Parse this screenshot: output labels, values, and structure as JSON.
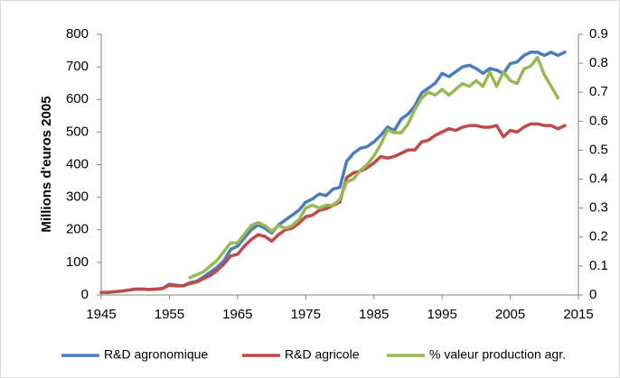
{
  "chart_data": {
    "type": "line",
    "y_label": "Millions d'euros 2005",
    "x": [
      1945,
      1946,
      1947,
      1948,
      1949,
      1950,
      1951,
      1952,
      1953,
      1954,
      1955,
      1956,
      1957,
      1958,
      1959,
      1960,
      1961,
      1962,
      1963,
      1964,
      1965,
      1966,
      1967,
      1968,
      1969,
      1970,
      1971,
      1972,
      1973,
      1974,
      1975,
      1976,
      1977,
      1978,
      1979,
      1980,
      1981,
      1982,
      1983,
      1984,
      1985,
      1986,
      1987,
      1988,
      1989,
      1990,
      1991,
      1992,
      1993,
      1994,
      1995,
      1996,
      1997,
      1998,
      1999,
      2000,
      2001,
      2002,
      2003,
      2004,
      2005,
      2006,
      2007,
      2008,
      2009,
      2010,
      2011,
      2012,
      2013
    ],
    "series": [
      {
        "name": "R&D agronomique",
        "color": "#4a7ebb",
        "values": [
          8,
          8,
          10,
          12,
          15,
          18,
          18,
          17,
          18,
          20,
          33,
          30,
          28,
          38,
          42,
          55,
          70,
          85,
          105,
          140,
          150,
          175,
          200,
          215,
          205,
          190,
          215,
          230,
          245,
          260,
          285,
          295,
          310,
          305,
          325,
          330,
          410,
          435,
          450,
          455,
          470,
          490,
          515,
          505,
          540,
          555,
          580,
          620,
          635,
          650,
          680,
          670,
          685,
          700,
          705,
          695,
          680,
          695,
          690,
          680,
          710,
          715,
          735,
          745,
          745,
          735,
          745,
          735,
          745
        ]
      },
      {
        "name": "R&D agricole",
        "color": "#be4b48",
        "values": [
          8,
          8,
          10,
          12,
          15,
          18,
          18,
          17,
          18,
          20,
          30,
          28,
          28,
          35,
          40,
          50,
          60,
          75,
          95,
          120,
          125,
          150,
          170,
          185,
          180,
          165,
          185,
          200,
          205,
          220,
          240,
          245,
          260,
          265,
          275,
          285,
          360,
          375,
          380,
          390,
          405,
          425,
          420,
          425,
          435,
          445,
          445,
          470,
          475,
          490,
          500,
          510,
          505,
          515,
          520,
          520,
          515,
          515,
          520,
          485,
          505,
          500,
          515,
          525,
          525,
          520,
          520,
          510,
          520
        ]
      },
      {
        "name": "% valeur production agr.",
        "color": "#98b954",
        "axis": "y2",
        "values": [
          null,
          null,
          null,
          null,
          null,
          null,
          null,
          null,
          null,
          null,
          null,
          null,
          null,
          0.06,
          0.07,
          0.08,
          0.1,
          0.12,
          0.15,
          0.18,
          0.18,
          0.21,
          0.24,
          0.25,
          0.24,
          0.22,
          0.24,
          0.23,
          0.24,
          0.26,
          0.3,
          0.31,
          0.3,
          0.31,
          0.31,
          0.33,
          0.39,
          0.4,
          0.43,
          0.45,
          0.48,
          0.52,
          0.57,
          0.56,
          0.56,
          0.59,
          0.64,
          0.68,
          0.7,
          0.69,
          0.71,
          0.69,
          0.71,
          0.73,
          0.72,
          0.74,
          0.72,
          0.77,
          0.72,
          0.77,
          0.74,
          0.73,
          0.78,
          0.79,
          0.82,
          0.76,
          0.72,
          0.68,
          null
        ]
      }
    ],
    "xlim": [
      1945,
      2015
    ],
    "xticks": [
      1945,
      1955,
      1965,
      1975,
      1985,
      1995,
      2005,
      2015
    ],
    "ylim": [
      0,
      800
    ],
    "yticks": [
      0,
      100,
      200,
      300,
      400,
      500,
      600,
      700,
      800
    ],
    "y2lim": [
      0,
      0.9
    ],
    "y2ticks": [
      0,
      0.1,
      0.2,
      0.3,
      0.4,
      0.5,
      0.6,
      0.7,
      0.8,
      0.9
    ],
    "legend": "bottom"
  }
}
